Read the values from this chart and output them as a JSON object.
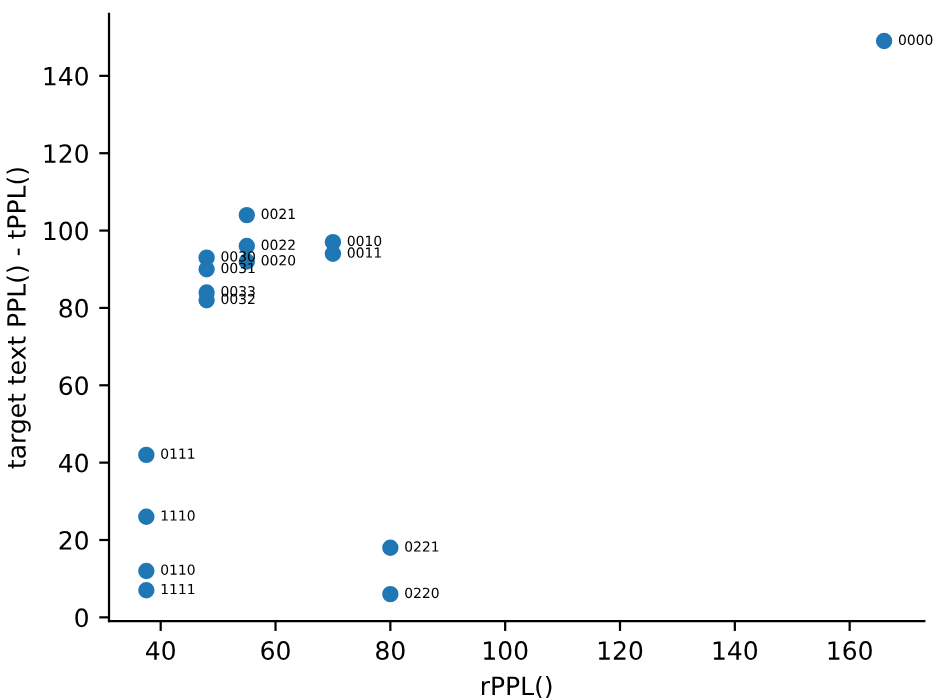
{
  "chart_data": {
    "type": "scatter",
    "xlabel": "rPPL()",
    "ylabel": "target text PPL() - tPPL()",
    "x": [
      166,
      55,
      55,
      55,
      70,
      70,
      48,
      48,
      48,
      48,
      37.5,
      37.5,
      37.5,
      37.5,
      80,
      80
    ],
    "series": [
      {
        "color": "#1f77b4",
        "values": [
          149,
          104,
          96,
          92,
          97,
          94,
          93,
          90,
          84,
          82,
          42,
          26,
          12,
          7,
          18,
          6
        ]
      }
    ],
    "annotations": [
      {
        "text": "0000",
        "x": 166,
        "y": 149
      },
      {
        "text": "0021",
        "x": 55,
        "y": 104
      },
      {
        "text": "0022",
        "x": 55,
        "y": 96
      },
      {
        "text": "0020",
        "x": 55,
        "y": 92
      },
      {
        "text": "0010",
        "x": 70,
        "y": 97
      },
      {
        "text": "0011",
        "x": 70,
        "y": 94
      },
      {
        "text": "0030",
        "x": 48,
        "y": 93
      },
      {
        "text": "0031",
        "x": 48,
        "y": 90
      },
      {
        "text": "0033",
        "x": 48,
        "y": 84
      },
      {
        "text": "0032",
        "x": 48,
        "y": 82
      },
      {
        "text": "0111",
        "x": 37.5,
        "y": 42
      },
      {
        "text": "1110",
        "x": 37.5,
        "y": 26
      },
      {
        "text": "0110",
        "x": 37.5,
        "y": 12
      },
      {
        "text": "1111",
        "x": 37.5,
        "y": 7
      },
      {
        "text": "0221",
        "x": 80,
        "y": 18
      },
      {
        "text": "0220",
        "x": 80,
        "y": 6
      }
    ],
    "xlim": [
      31,
      173
    ],
    "ylim": [
      -1,
      156
    ],
    "xticks": [
      40,
      60,
      80,
      100,
      120,
      140,
      160
    ],
    "yticks": [
      0,
      20,
      40,
      60,
      80,
      100,
      120,
      140
    ],
    "marker": "circle",
    "grid": false
  }
}
